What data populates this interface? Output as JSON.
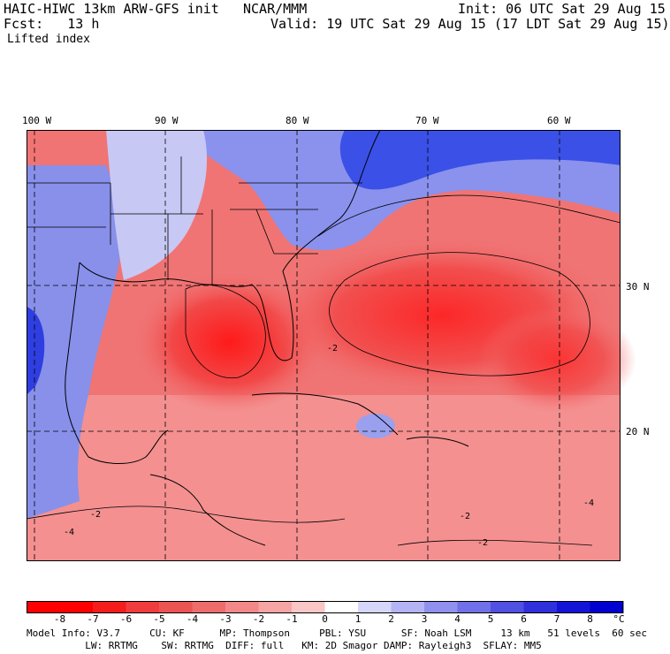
{
  "header": {
    "model": "HAIC-HIWC 13km ARW-GFS init",
    "org": "NCAR/MMM",
    "init": "Init: 06 UTC Sat 29 Aug 15",
    "fcst": "Fcst:   13 h",
    "valid": "Valid: 19 UTC Sat 29 Aug 15 (17 LDT Sat 29 Aug 15)",
    "field": "Lifted index"
  },
  "lon_labels": [
    "100 W",
    "90 W",
    "80 W",
    "70 W",
    "60 W"
  ],
  "lat_labels": [
    "30 N",
    "20 N"
  ],
  "map": {
    "contour_labels": [
      "-2",
      "-4"
    ],
    "colors": {
      "land_cool": "#3b50e6",
      "warm": "#f03c3c",
      "neutral": "#ffffff"
    }
  },
  "colorbar": {
    "labels": [
      "-8",
      "-7",
      "-6",
      "-5",
      "-4",
      "-3",
      "-2",
      "-1",
      "0",
      "1",
      "2",
      "3",
      "4",
      "5",
      "6",
      "7",
      "8"
    ],
    "unit": "°C",
    "colors": [
      "#ff0000",
      "#f51c1c",
      "#f03c3c",
      "#ec5454",
      "#ef6c6c",
      "#f38888",
      "#f6a4a4",
      "#fac6c6",
      "#ffffff",
      "#d6d6fa",
      "#b4b4f4",
      "#9090ee",
      "#7070e8",
      "#5050e2",
      "#3030dc",
      "#1414d6",
      "#0000d0"
    ]
  },
  "model_info": {
    "line1": "Model Info: V3.7     CU: KF      MP: Thompson     PBL: YSU      SF: Noah LSM     13 km   51 levels  60 sec",
    "line2": "          LW: RRTMG    SW: RRTMG  DIFF: full   KM: 2D Smagor DAMP: Rayleigh3  SFLAY: MM5"
  }
}
